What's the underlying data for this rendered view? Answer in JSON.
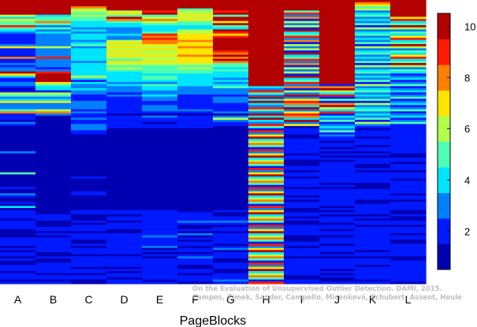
{
  "chart_data": {
    "type": "heatmap",
    "title": "",
    "xlabel": "PageBlocks",
    "ylabel": "",
    "categories": [
      "A",
      "B",
      "C",
      "D",
      "E",
      "F",
      "G",
      "H",
      "I",
      "J",
      "K",
      "L"
    ],
    "colorbar": {
      "min": 0.5,
      "max": 10.5,
      "ticks": [
        2,
        4,
        6,
        8,
        10
      ],
      "colormap": "jet"
    },
    "n_rows": 100,
    "columns": [
      {
        "name": "A",
        "top_block": [
          10,
          10,
          10,
          10,
          10,
          10,
          10,
          6,
          4,
          7,
          5,
          5,
          9,
          5,
          4,
          3,
          2,
          2,
          2,
          2,
          2,
          3,
          7,
          2,
          2,
          2,
          2,
          8,
          2,
          2,
          3,
          2,
          3,
          3,
          10,
          7,
          4,
          2,
          2,
          3,
          3,
          2,
          1,
          2,
          6,
          5,
          3,
          4,
          7,
          3,
          3,
          3,
          5,
          8,
          2,
          2,
          2,
          1,
          3,
          2,
          1,
          1,
          1,
          1,
          1,
          1,
          1,
          1,
          1,
          1,
          1,
          1,
          3,
          1,
          1,
          1,
          1,
          1,
          1,
          1,
          1,
          1,
          5,
          1,
          1,
          1,
          1,
          1,
          1,
          2,
          1,
          1,
          3,
          2,
          1,
          1,
          2,
          1,
          4,
          1
        ]
      },
      {
        "name": "B",
        "top_block": [
          10,
          10,
          10,
          10,
          10,
          10,
          10,
          4,
          5,
          5,
          8,
          5,
          3,
          5,
          3,
          4,
          3,
          3,
          3,
          3,
          3,
          3,
          6,
          3,
          3,
          3,
          3,
          9,
          3,
          3,
          3,
          3,
          2,
          3,
          9,
          10,
          10,
          10,
          10,
          7,
          5,
          4,
          4,
          2,
          6,
          5,
          3,
          4,
          7,
          3,
          3,
          3,
          6,
          8,
          3,
          1,
          1,
          1,
          1,
          1,
          1,
          1,
          1,
          1,
          1,
          1,
          1,
          1,
          1,
          1,
          1,
          1,
          1,
          1,
          1,
          1,
          1,
          1,
          1,
          1,
          1,
          1,
          1,
          1,
          1,
          1,
          1,
          1,
          1,
          1,
          1,
          1,
          1,
          1,
          1,
          1,
          1,
          1,
          1,
          1
        ]
      },
      {
        "name": "C",
        "top_block": [
          10,
          10,
          10,
          8,
          6,
          6,
          5,
          6,
          5,
          5,
          4,
          4,
          4,
          3,
          4,
          3,
          4,
          4,
          4,
          3,
          4,
          5,
          3,
          4,
          4,
          4,
          4,
          4,
          4,
          3,
          4,
          4,
          4,
          4,
          4,
          4,
          6,
          4,
          2,
          4,
          3,
          3,
          4,
          3,
          3,
          2,
          2,
          2,
          3,
          3,
          3,
          3,
          2,
          3,
          2,
          2,
          3,
          2,
          2,
          3,
          3,
          3,
          2,
          2,
          1,
          1,
          1,
          1,
          1,
          1,
          1,
          1,
          1,
          1,
          1,
          1,
          1,
          1,
          1,
          1,
          1,
          1,
          1,
          1,
          2,
          1,
          1,
          1,
          1,
          1,
          1,
          2,
          2,
          1,
          1,
          1,
          1,
          1,
          1,
          1
        ]
      },
      {
        "name": "D",
        "top_block": [
          10,
          10,
          10,
          10,
          10,
          6,
          7,
          5,
          10,
          8,
          5,
          4,
          4,
          3,
          3,
          3,
          4,
          3,
          3,
          6,
          7,
          6,
          7,
          6,
          7,
          6,
          7,
          6,
          5,
          7,
          6,
          5,
          6,
          5,
          4,
          4,
          4,
          4,
          4,
          3,
          4,
          3,
          3,
          3,
          2,
          3,
          2,
          2,
          2,
          2,
          2,
          2,
          2,
          2,
          1,
          2,
          2,
          2,
          2,
          2,
          2,
          1,
          1,
          1,
          1,
          1,
          1,
          1,
          1,
          1,
          1,
          1,
          1,
          1,
          1,
          1,
          1,
          1,
          1,
          1,
          1,
          1,
          1,
          1,
          1,
          1,
          1,
          1,
          1,
          1,
          1,
          1,
          1,
          1,
          1,
          1,
          1,
          1,
          1,
          1
        ]
      },
      {
        "name": "E",
        "top_block": [
          10,
          10,
          10,
          10,
          10,
          9,
          10,
          5,
          6,
          8,
          6,
          5,
          4,
          4,
          4,
          5,
          9,
          8,
          9,
          8,
          8,
          7,
          6,
          7,
          6,
          6,
          7,
          6,
          6,
          7,
          6,
          5,
          5,
          5,
          5,
          4,
          5,
          5,
          4,
          3,
          5,
          4,
          4,
          3,
          3,
          4,
          3,
          3,
          2,
          2,
          3,
          3,
          3,
          2,
          1,
          3,
          2,
          2,
          1,
          2,
          2,
          1,
          1,
          1,
          1,
          1,
          1,
          1,
          1,
          1,
          1,
          1,
          1,
          1,
          1,
          1,
          1,
          1,
          1,
          1,
          1,
          1,
          1,
          1,
          1,
          1,
          1,
          1,
          1,
          1,
          1,
          1,
          1,
          1,
          1,
          1,
          1,
          1,
          1,
          1
        ]
      },
      {
        "name": "F",
        "top_block": [
          10,
          10,
          10,
          10,
          5,
          6,
          6,
          7,
          6,
          7,
          5,
          5,
          4,
          4,
          6,
          6,
          7,
          7,
          7,
          8,
          7,
          7,
          8,
          7,
          7,
          7,
          8,
          7,
          7,
          7,
          6,
          5,
          6,
          5,
          5,
          4,
          4,
          4,
          4,
          4,
          4,
          3,
          3,
          3,
          3,
          2,
          2,
          2,
          2,
          2,
          2,
          2,
          3,
          2,
          1,
          2,
          2,
          2,
          2,
          2,
          2,
          1,
          1,
          1,
          1,
          1,
          1,
          1,
          1,
          1,
          1,
          1,
          1,
          1,
          1,
          1,
          1,
          1,
          1,
          1,
          1,
          1,
          1,
          1,
          1,
          1,
          1,
          1,
          1,
          1,
          1,
          1,
          1,
          1,
          1,
          1,
          1,
          1,
          1,
          1
        ]
      },
      {
        "name": "G",
        "top_block": [
          10,
          10,
          10,
          10,
          10,
          9,
          10,
          5,
          10,
          10,
          7,
          10,
          5,
          4,
          10,
          9,
          7,
          9,
          10,
          10,
          10,
          10,
          10,
          10,
          9,
          8,
          10,
          8,
          10,
          8,
          5,
          5,
          4,
          5,
          4,
          4,
          4,
          3,
          4,
          3,
          4,
          5,
          3,
          3,
          3,
          2,
          3,
          3,
          3,
          2,
          2,
          2,
          2,
          3,
          1,
          3,
          6,
          3,
          2,
          2,
          1,
          1,
          1,
          1,
          1,
          1,
          1,
          1,
          1,
          1,
          1,
          1,
          1,
          1,
          1,
          1,
          1,
          1,
          1,
          1,
          1,
          1,
          1,
          1,
          1,
          1,
          1,
          1,
          1,
          1,
          1,
          1,
          1,
          1,
          1,
          1,
          1,
          1,
          1,
          1
        ]
      },
      {
        "name": "H",
        "top_block": [
          10,
          10,
          10,
          10,
          10,
          10,
          10,
          10,
          10,
          10,
          10,
          10,
          10,
          10,
          10,
          10,
          10,
          10,
          10,
          10,
          10,
          10,
          10,
          10,
          10,
          10,
          10,
          10,
          10,
          10,
          10,
          10,
          10,
          10,
          10,
          10,
          10,
          10,
          10,
          10,
          10,
          10,
          10,
          10,
          10,
          10,
          10,
          10,
          10,
          10,
          10,
          10,
          10,
          10,
          10,
          10,
          10,
          10,
          10,
          10,
          10,
          10,
          10,
          10,
          10,
          10,
          10,
          10,
          10,
          10,
          10,
          10,
          10,
          10,
          10,
          10,
          10,
          10,
          10,
          10,
          10,
          10,
          10,
          10,
          10,
          10,
          10,
          10,
          10,
          10,
          10,
          10,
          10,
          10,
          10,
          10,
          10,
          10,
          10,
          10
        ]
      },
      {
        "name": "I",
        "top_block": [
          10,
          10,
          10,
          10,
          10,
          10,
          10,
          10,
          10,
          10,
          10,
          10,
          10,
          10,
          10,
          10,
          10,
          10,
          10,
          10,
          10,
          10,
          10,
          10,
          10,
          10,
          10,
          10,
          10,
          10,
          10,
          10,
          10,
          10,
          10,
          10,
          10,
          10,
          10,
          10,
          10,
          10,
          10,
          10,
          10,
          10,
          10,
          10,
          10,
          10,
          10,
          10,
          10,
          10,
          10,
          10,
          10,
          10,
          10,
          10,
          10,
          10,
          10,
          10,
          10,
          10,
          10,
          10,
          10,
          10,
          10,
          10,
          10,
          10,
          10,
          10,
          10,
          10,
          10,
          10,
          10,
          10,
          10,
          10,
          10,
          10,
          10,
          10,
          10,
          10,
          10,
          10,
          10,
          10,
          10,
          10,
          10,
          10,
          10,
          10
        ]
      },
      {
        "name": "J",
        "top_block": [
          10,
          10,
          10,
          10,
          10,
          10,
          10,
          10,
          10,
          10,
          10,
          10,
          10,
          10,
          10,
          10,
          10,
          10,
          10,
          10,
          10,
          10,
          10,
          10,
          10,
          10,
          10,
          10,
          10,
          10,
          10,
          10,
          10,
          10,
          10,
          10,
          10,
          10,
          10,
          10,
          10,
          10,
          10,
          10,
          10,
          10,
          10,
          10,
          10,
          10,
          10,
          10,
          10,
          10,
          10,
          10,
          10,
          10,
          10,
          10,
          10,
          10,
          10,
          10,
          10,
          10,
          10,
          10,
          10,
          10,
          10,
          10,
          10,
          10,
          10,
          10,
          10,
          10,
          10,
          10,
          10,
          10,
          10,
          10,
          10,
          10,
          10,
          10,
          10,
          10,
          10,
          10,
          10,
          10,
          10,
          10,
          10,
          10,
          10,
          10
        ]
      },
      {
        "name": "K",
        "top_block": [
          10,
          10,
          8,
          7,
          6,
          5,
          6,
          4,
          6,
          5,
          4,
          5,
          4,
          4,
          4,
          4,
          3,
          3,
          3,
          3,
          3,
          3,
          3,
          3,
          3,
          3,
          3,
          3,
          3,
          3,
          3,
          3,
          3,
          3,
          3,
          3,
          3,
          3,
          3,
          3,
          3,
          3,
          3,
          3,
          3,
          3,
          3,
          3,
          3,
          3,
          3,
          3,
          3,
          3,
          3,
          3,
          3,
          3,
          3,
          3,
          3,
          3,
          3,
          3,
          3,
          3,
          3,
          3,
          3,
          3,
          3,
          3,
          3,
          3,
          3,
          3,
          3,
          3,
          3,
          3,
          3,
          3,
          3,
          3,
          3,
          3,
          3,
          3,
          3,
          3,
          3,
          3,
          3,
          3,
          3,
          3,
          3,
          3,
          3,
          3
        ]
      },
      {
        "name": "L",
        "top_block": [
          10,
          10,
          10,
          10,
          10,
          10,
          10,
          10,
          10,
          10,
          10,
          10,
          10,
          10,
          10,
          10,
          10,
          10,
          10,
          10,
          10,
          10,
          10,
          10,
          10,
          10,
          10,
          10,
          10,
          10,
          10,
          10,
          10,
          10,
          10,
          10,
          10,
          10,
          10,
          10,
          10,
          10,
          10,
          10,
          10,
          10,
          10,
          10,
          10,
          10,
          10,
          10,
          10,
          10,
          10,
          10,
          10,
          10,
          10,
          10,
          10,
          10,
          10,
          10,
          10,
          10,
          10,
          10,
          10,
          10,
          10,
          10,
          10,
          10,
          10,
          10,
          10,
          10,
          10,
          10,
          10,
          10,
          10,
          10,
          10,
          10,
          10,
          10,
          10,
          10,
          10,
          10,
          10,
          10,
          10,
          10,
          10,
          10,
          10,
          10
        ]
      }
    ]
  },
  "watermark": {
    "line1": "On the Evaluation of Unsupervised Outlier Detection. DAMI, 2015.",
    "line2": "Campos, Zimek, Sander, Campello, Micenková, Schubert, Assent, Houle"
  }
}
